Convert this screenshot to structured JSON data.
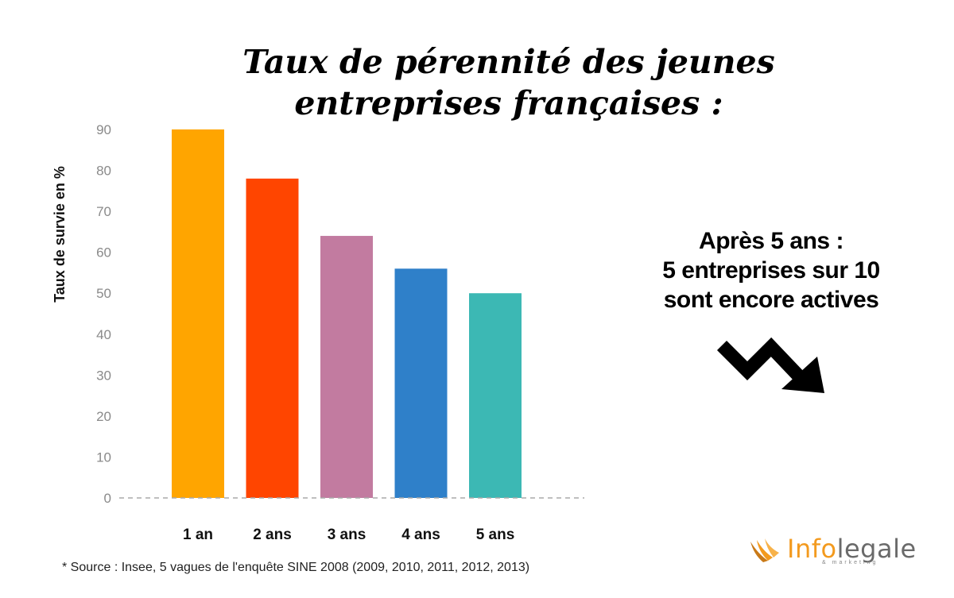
{
  "title_line1": "Taux de pérennité des jeunes",
  "title_line2": "entreprises françaises :",
  "callout": {
    "line1": "Après 5 ans :",
    "line2": "5 entreprises sur 10",
    "line3": "sont encore actives"
  },
  "source": "* Source : Insee, 5 vagues de l'enquête SINE 2008 (2009, 2010, 2011, 2012, 2013)",
  "logo": {
    "part1": "Info",
    "part2": "legale",
    "tagline": "& marketing",
    "colors": {
      "info": "#f39a1e",
      "legale": "#6a6a6a"
    }
  },
  "arrow_icon": "zigzag-down-arrow-icon",
  "chart_data": {
    "type": "bar",
    "categories": [
      "1 an",
      "2 ans",
      "3 ans",
      "4 ans",
      "5 ans"
    ],
    "values": [
      90,
      78,
      64,
      56,
      50
    ],
    "colors": [
      "#ffa500",
      "#ff4500",
      "#c27ba0",
      "#2f80c9",
      "#3cb8b4"
    ],
    "ylabel": "Taux de survie en %",
    "xlabel": "",
    "ylim": [
      0,
      90
    ],
    "yticks": [
      0,
      10,
      20,
      30,
      40,
      50,
      60,
      70,
      80,
      90
    ],
    "grid": false,
    "baseline": "dashed"
  }
}
